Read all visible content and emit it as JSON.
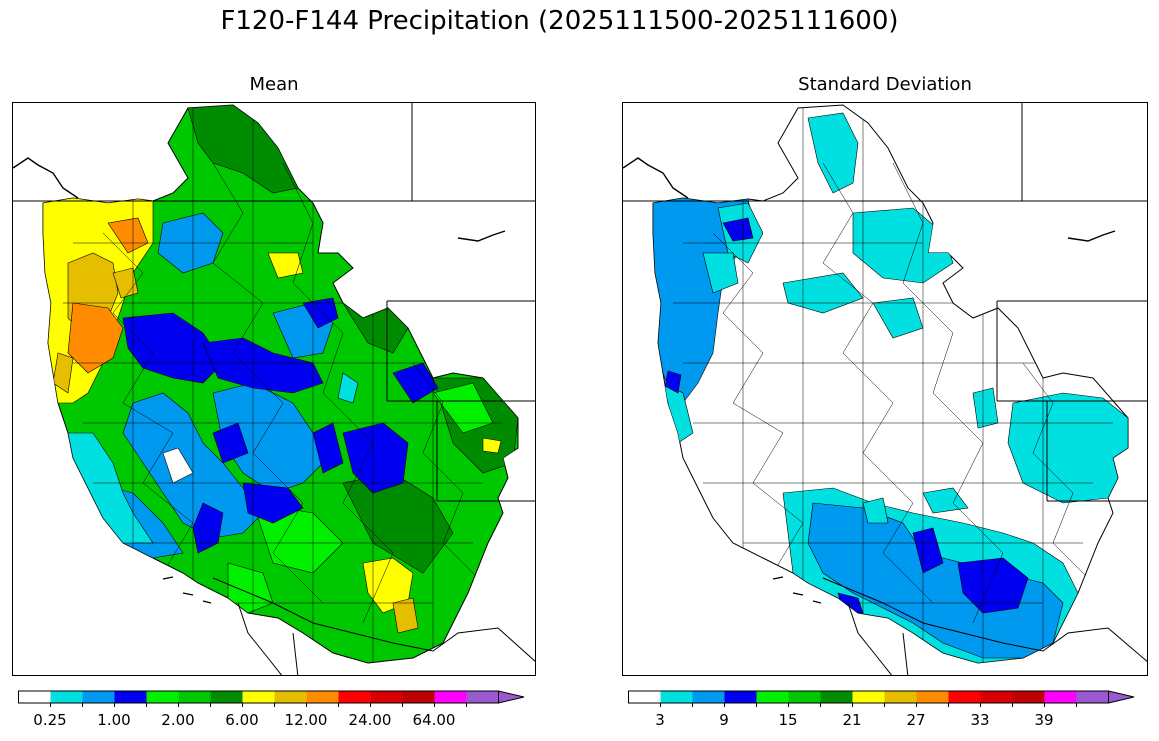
{
  "title": "F120-F144 Precipitation (2025111500-2025111600)",
  "panels": [
    {
      "id": "mean",
      "title": "Mean",
      "colorbar": {
        "colors": [
          "#ffffff",
          "#00e0e0",
          "#0099f0",
          "#0000f0",
          "#00f000",
          "#00c800",
          "#008c00",
          "#ffff00",
          "#e6be00",
          "#ff8c00",
          "#ff0000",
          "#d70000",
          "#bd0000",
          "#ff00ff",
          "#9b59d0"
        ],
        "tick_labels": [
          "0.25",
          "1.00",
          "2.00",
          "6.00",
          "12.00",
          "24.00",
          "64.00"
        ],
        "extend": "max"
      }
    },
    {
      "id": "stddev",
      "title": "Standard Deviation",
      "colorbar": {
        "colors": [
          "#ffffff",
          "#00e0e0",
          "#0099f0",
          "#0000f0",
          "#00f000",
          "#00c800",
          "#008c00",
          "#ffff00",
          "#e6be00",
          "#ff8c00",
          "#ff0000",
          "#d70000",
          "#bd0000",
          "#ff00ff",
          "#9b59d0"
        ],
        "tick_labels": [
          "3",
          "9",
          "15",
          "21",
          "27",
          "33",
          "39"
        ],
        "extend": "max"
      }
    }
  ]
}
